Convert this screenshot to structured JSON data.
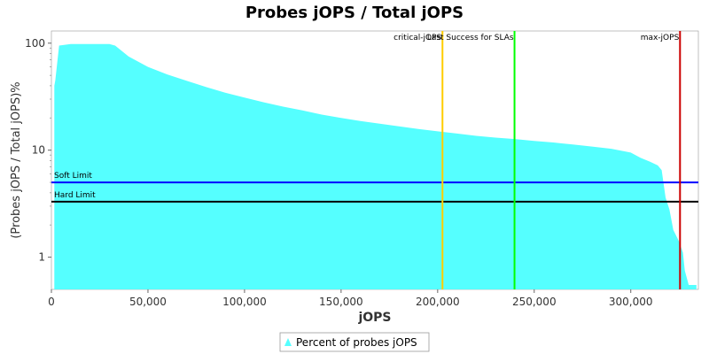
{
  "chart_data": {
    "type": "area",
    "title": "Probes jOPS / Total jOPS",
    "xlabel": "jOPS",
    "ylabel": "(Probes jOPS / Total jOPS)%",
    "xlim": [
      0,
      335000
    ],
    "ylim": [
      0.5,
      130
    ],
    "y_scale": "log",
    "x_ticks": [
      {
        "value": 0,
        "label": "0"
      },
      {
        "value": 50000,
        "label": "50,000"
      },
      {
        "value": 100000,
        "label": "100,000"
      },
      {
        "value": 150000,
        "label": "150,000"
      },
      {
        "value": 200000,
        "label": "200,000"
      },
      {
        "value": 250000,
        "label": "250,000"
      },
      {
        "value": 300000,
        "label": "300,000"
      }
    ],
    "y_ticks": [
      {
        "value": 100,
        "label": "100"
      },
      {
        "value": 10,
        "label": "10"
      },
      {
        "value": 1,
        "label": "1"
      }
    ],
    "grid": false,
    "legend_position": "bottom",
    "series": [
      {
        "name": "Percent of probes jOPS",
        "color": "#55FFFF",
        "x": [
          1500,
          2000,
          4000,
          10000,
          20000,
          30000,
          33000,
          40000,
          50000,
          60000,
          70000,
          80000,
          90000,
          100000,
          110000,
          120000,
          130000,
          140000,
          150000,
          160000,
          170000,
          180000,
          190000,
          200000,
          210000,
          220000,
          230000,
          240000,
          250000,
          260000,
          270000,
          280000,
          290000,
          300000,
          305000,
          310000,
          314000,
          316000,
          318000,
          320000,
          322000,
          325000,
          327000,
          328000,
          330000,
          334000
        ],
        "y": [
          40,
          45,
          95,
          98,
          98,
          98,
          95,
          75,
          60,
          51,
          44.5,
          39,
          34.5,
          31,
          28,
          25.5,
          23.5,
          21.5,
          20,
          18.7,
          17.7,
          16.7,
          15.8,
          15,
          14.3,
          13.6,
          13.1,
          12.7,
          12.2,
          11.8,
          11.3,
          10.8,
          10.3,
          9.5,
          8.5,
          7.8,
          7.2,
          6.5,
          3.6,
          2.8,
          1.8,
          1.4,
          1.1,
          0.75,
          0.55,
          0.55
        ]
      }
    ],
    "reference_lines": [
      {
        "orientation": "horizontal",
        "label": "Soft Limit",
        "value": 5,
        "color": "#0000FF"
      },
      {
        "orientation": "horizontal",
        "label": "Hard Limit",
        "value": 3.3,
        "color": "#000000"
      },
      {
        "orientation": "vertical",
        "label": "critical-jOPS",
        "value": 202500,
        "color": "#FFCC00"
      },
      {
        "orientation": "vertical",
        "label": "Last Success for SLAs",
        "value": 239800,
        "color": "#00FF00"
      },
      {
        "orientation": "vertical",
        "label": "max-jOPS",
        "value": 325500,
        "color": "#CC0000"
      }
    ]
  }
}
